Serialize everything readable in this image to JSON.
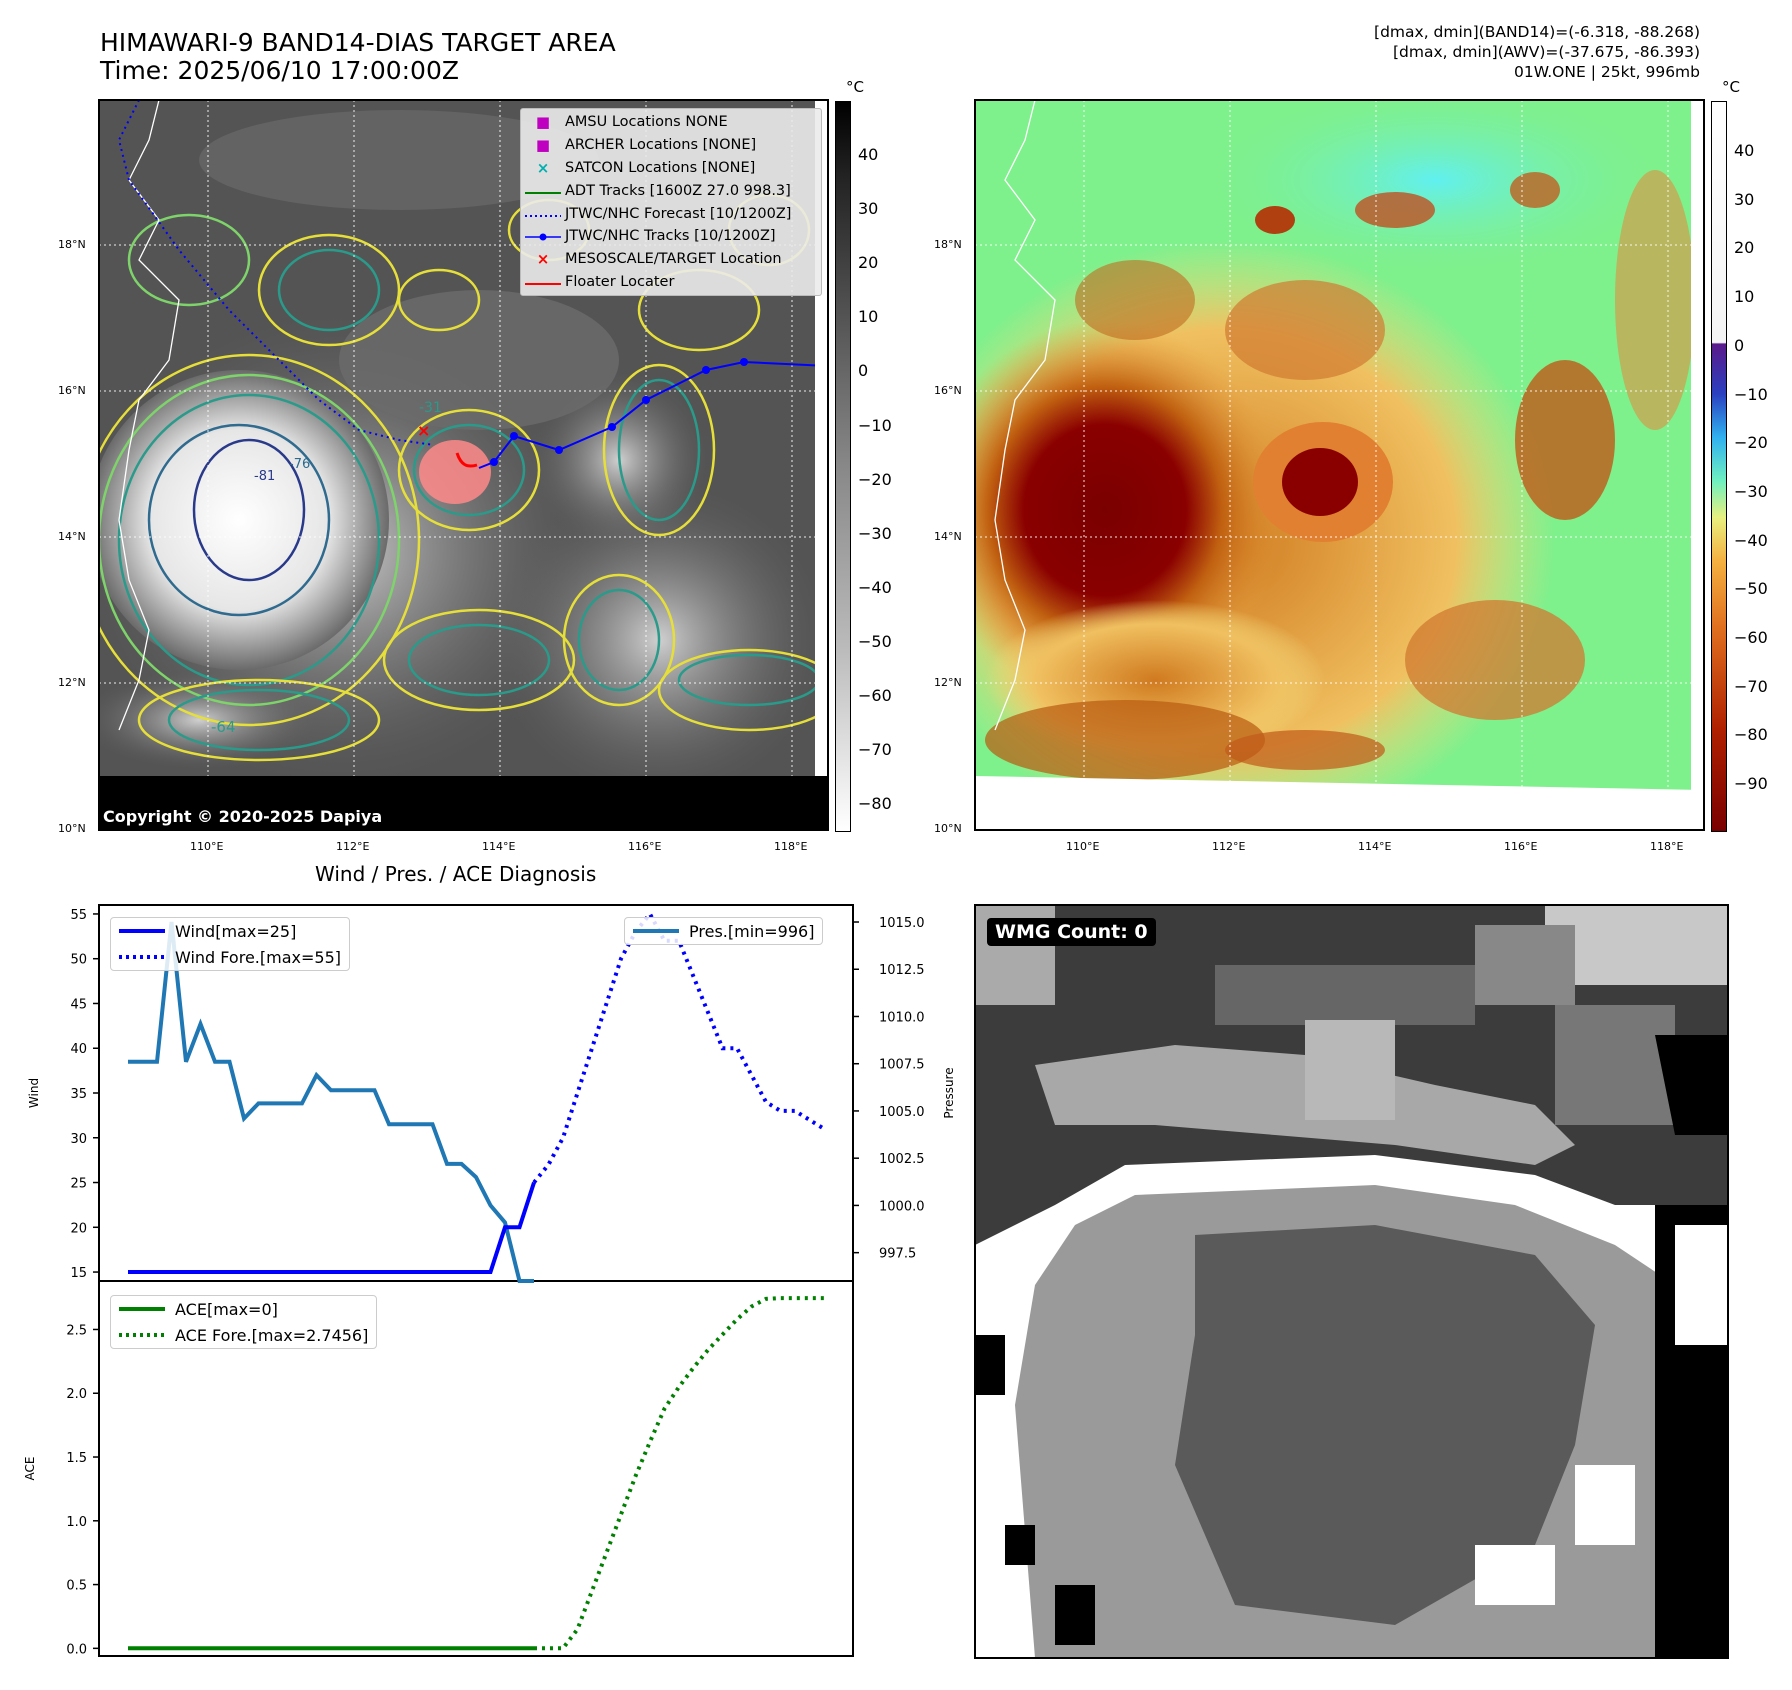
{
  "header": {
    "title_line1": "HIMAWARI-9 BAND14-DIAS TARGET AREA",
    "title_line2": "Time: 2025/06/10 17:00:00Z",
    "info_line1": "[dmax, dmin](BAND14)=(-6.318, -88.268)",
    "info_line2": "[dmax, dmin](AWV)=(-37.675, -86.393)",
    "info_line3": "01W.ONE | 25kt, 996mb"
  },
  "map": {
    "lat_labels": [
      "18°N",
      "16°N",
      "14°N",
      "12°N",
      "10°N"
    ],
    "lon_labels": [
      "110°E",
      "112°E",
      "114°E",
      "116°E",
      "118°E"
    ],
    "copyright": "Copyright © 2020-2025 Dapiya",
    "contour_labels": [
      "-31",
      "-64",
      "-76",
      "-81"
    ],
    "legend": [
      {
        "marker": "■",
        "color": "#c000c0",
        "label": "AMSU Locations NONE"
      },
      {
        "marker": "■",
        "color": "#c000c0",
        "label": "ARCHER Locations [NONE]"
      },
      {
        "marker": "×",
        "color": "#00b0b0",
        "label": "SATCON Locations [NONE]"
      },
      {
        "marker": "line",
        "color": "#008000",
        "label": "ADT Tracks [1600Z 27.0 998.3]"
      },
      {
        "marker": "dotted",
        "color": "#0000ff",
        "label": "JTWC/NHC Forecast [10/1200Z]"
      },
      {
        "marker": "linedot",
        "color": "#0000ff",
        "label": "JTWC/NHC Tracks [10/1200Z]"
      },
      {
        "marker": "×",
        "color": "#ff0000",
        "label": "MESOSCALE/TARGET Location"
      },
      {
        "marker": "line",
        "color": "#ff0000",
        "label": "Floater Locater"
      }
    ]
  },
  "colorbars": {
    "unit": "°C",
    "left_ticks": [
      "40",
      "30",
      "20",
      "10",
      "0",
      "−10",
      "−20",
      "−30",
      "−40",
      "−50",
      "−60",
      "−70",
      "−80"
    ],
    "right_ticks": [
      "40",
      "30",
      "20",
      "10",
      "0",
      "−10",
      "−20",
      "−30",
      "−40",
      "−50",
      "−60",
      "−70",
      "−80",
      "−90"
    ]
  },
  "wmg": {
    "label": "WMG Count: 0"
  },
  "chart_data": [
    {
      "type": "line",
      "title": "Wind / Pres. / ACE Diagnosis",
      "ylabel": "Wind",
      "y2label": "Pressure",
      "ylim": [
        14,
        56
      ],
      "y2lim": [
        996.0,
        1015.9
      ],
      "yticks": [
        15,
        20,
        25,
        30,
        35,
        40,
        45,
        50,
        55
      ],
      "y2ticks": [
        "997.5",
        "1000.0",
        "1002.5",
        "1005.0",
        "1007.5",
        "1010.0",
        "1012.5",
        "1015.0"
      ],
      "x_index_range": [
        -2,
        50
      ],
      "series": [
        {
          "name": "Wind[max=25]",
          "color": "#0000ff",
          "style": "solid",
          "axis": "left",
          "x": [
            0,
            1,
            2,
            3,
            4,
            5,
            6,
            7,
            8,
            9,
            10,
            11,
            12,
            13,
            14,
            15,
            16,
            17,
            18,
            19,
            20,
            21,
            22,
            23,
            24,
            25,
            26,
            27,
            28
          ],
          "values": [
            15,
            15,
            15,
            15,
            15,
            15,
            15,
            15,
            15,
            15,
            15,
            15,
            15,
            15,
            15,
            15,
            15,
            15,
            15,
            15,
            15,
            15,
            15,
            15,
            15,
            15,
            20,
            20,
            25
          ]
        },
        {
          "name": "Wind Fore.[max=55]",
          "color": "#0000ff",
          "style": "dotted",
          "axis": "left",
          "x": [
            28,
            29,
            30,
            31,
            32,
            33,
            34,
            35,
            36,
            37,
            38,
            39,
            40,
            41,
            42,
            43,
            44,
            45,
            46,
            47,
            48
          ],
          "values": [
            25,
            27,
            30,
            35,
            40,
            45,
            50,
            53,
            55,
            52,
            52,
            48,
            44,
            40,
            40,
            37,
            34,
            33,
            33,
            32,
            31
          ]
        },
        {
          "name": "Pres.[min=996]",
          "color": "#1f77b4",
          "style": "solid",
          "axis": "right",
          "x": [
            0,
            1,
            2,
            3,
            4,
            5,
            6,
            7,
            8,
            9,
            10,
            11,
            12,
            13,
            14,
            15,
            16,
            17,
            18,
            19,
            20,
            21,
            22,
            23,
            24,
            25,
            26,
            27,
            28
          ],
          "values": [
            1007.6,
            1007.6,
            1007.6,
            1015.0,
            1007.6,
            1009.6,
            1007.6,
            1007.6,
            1004.6,
            1005.4,
            1005.4,
            1005.4,
            1005.4,
            1006.9,
            1006.1,
            1006.1,
            1006.1,
            1006.1,
            1004.3,
            1004.3,
            1004.3,
            1004.3,
            1002.2,
            1002.2,
            1001.5,
            1000.0,
            999.1,
            996.0,
            996.0
          ]
        }
      ]
    },
    {
      "type": "line",
      "ylabel": "ACE",
      "ylim": [
        -0.06,
        2.88
      ],
      "yticks": [
        "0.0",
        "0.5",
        "1.0",
        "1.5",
        "2.0",
        "2.5"
      ],
      "x_index_range": [
        -2,
        50
      ],
      "series": [
        {
          "name": "ACE[max=0]",
          "color": "#008000",
          "style": "solid",
          "x": [
            0,
            28
          ],
          "values": [
            0,
            0
          ]
        },
        {
          "name": "ACE Fore.[max=2.7456]",
          "color": "#008000",
          "style": "dotted",
          "x": [
            28,
            29,
            30,
            31,
            32,
            33,
            34,
            35,
            36,
            37,
            38,
            39,
            40,
            41,
            42,
            43,
            44,
            45,
            46,
            47,
            48
          ],
          "values": [
            0,
            0,
            0,
            0.15,
            0.45,
            0.75,
            1.05,
            1.35,
            1.62,
            1.88,
            2.05,
            2.2,
            2.34,
            2.46,
            2.58,
            2.68,
            2.74,
            2.7456,
            2.7456,
            2.7456,
            2.7456
          ]
        }
      ]
    }
  ]
}
